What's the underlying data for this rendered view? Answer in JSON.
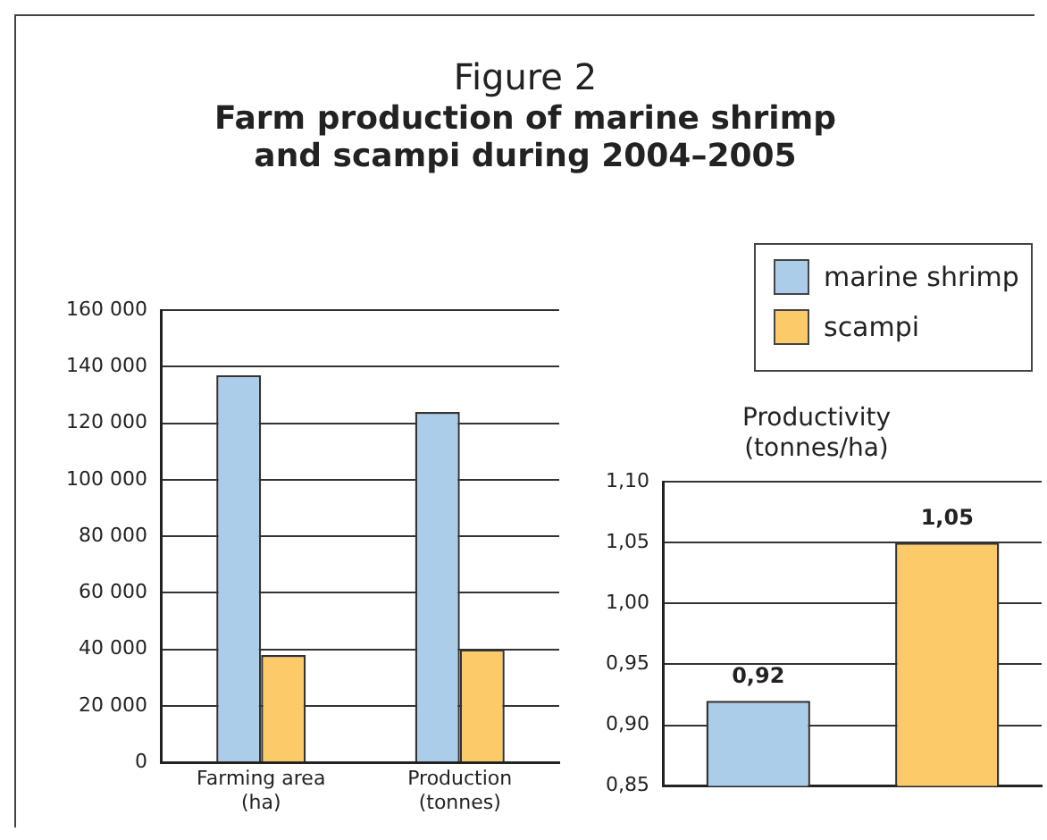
{
  "chart_data": [
    {
      "type": "bar",
      "title": "Figure 2",
      "subtitle": "Farm production of marine shrimp and scampi during 2004–2005",
      "categories": [
        "Farming area\n(ha)",
        "Production\n(tonnes)"
      ],
      "series": [
        {
          "name": "marine shrimp",
          "color": "#abcdea",
          "values": [
            137000,
            124000
          ]
        },
        {
          "name": "scampi",
          "color": "#fdca6a",
          "values": [
            38000,
            40000
          ]
        }
      ],
      "ylim": [
        0,
        160000
      ],
      "yticks": [
        0,
        {
          "value": 20000,
          "label": "20 000"
        },
        {
          "value": 40000,
          "label": "40 000"
        },
        {
          "value": 60000,
          "label": "60 000"
        },
        {
          "value": 80000,
          "label": "80 000"
        },
        {
          "value": 100000,
          "label": "100 000"
        },
        {
          "value": 120000,
          "label": "120 000"
        },
        {
          "value": 140000,
          "label": "140 000"
        },
        {
          "value": 160000,
          "label": "160 000"
        }
      ],
      "grid": "y",
      "legend": "top right"
    },
    {
      "type": "bar",
      "title": "Productivity\n(tonnes/ha)",
      "categories": [
        null,
        null
      ],
      "values": [
        0.92,
        1.05
      ],
      "colors": [
        "#abcdea",
        "#fdca6a"
      ],
      "ylim": [
        0.85,
        1.1
      ],
      "yticks": [
        {
          "value": 0.85,
          "label": "0,85"
        },
        {
          "value": 0.9,
          "label": "0,90"
        },
        {
          "value": 0.95,
          "label": "0,95"
        },
        {
          "value": 1.0,
          "label": "1,00"
        },
        {
          "value": 1.05,
          "label": "1,05"
        },
        {
          "value": 1.1,
          "label": "1,10"
        }
      ],
      "value_labels": [
        "0,92",
        "1,05"
      ],
      "grid": "y"
    }
  ]
}
